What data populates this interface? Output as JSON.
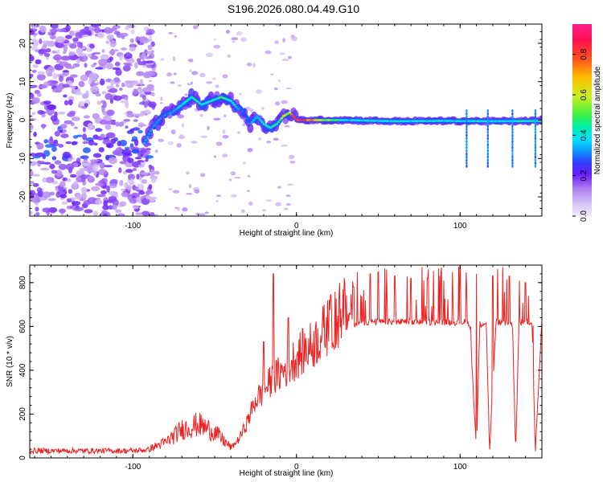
{
  "figure": {
    "title": "S196.2026.080.04.49.G10"
  },
  "chart_data": [
    {
      "type": "heatmap",
      "title": "S196.2026.080.04.49.G10",
      "xlabel": "Height of straight line (km)",
      "ylabel": "Frequency (Hz)",
      "xlim": [
        -163,
        150
      ],
      "ylim": [
        -25,
        25
      ],
      "x_ticks": [
        -100,
        0,
        100
      ],
      "y_ticks": [
        -20,
        -10,
        0,
        10,
        20
      ],
      "colorbar": {
        "label": "Normalized spectral amplitude",
        "range": [
          0,
          0.95
        ],
        "ticks": [
          "0.0",
          "0.2",
          "0.4",
          "0.6",
          "0.8"
        ],
        "colormap": [
          "#d8c8f8",
          "#b080f0",
          "#6a1cff",
          "#3040ff",
          "#1098ff",
          "#00e0ff",
          "#00f0a0",
          "#40f040",
          "#c8f020",
          "#ffc000",
          "#ff5020",
          "#ff1050",
          "#ff2090"
        ]
      },
      "ridge": {
        "x": [
          -93,
          -88,
          -82,
          -76,
          -70,
          -64,
          -58,
          -52,
          -46,
          -40,
          -36,
          -32,
          -28,
          -24,
          -20,
          -16,
          -12,
          -8,
          -4,
          0,
          10,
          30,
          60,
          90,
          120,
          150
        ],
        "y": [
          -6,
          -2,
          1,
          2,
          4,
          6,
          4,
          5,
          6,
          5,
          3,
          2,
          -1,
          1,
          -1,
          -2,
          -1,
          1,
          2,
          0,
          0,
          0,
          -0.3,
          -0.2,
          -0.3,
          -0.2
        ],
        "amplitude": [
          0.35,
          0.3,
          0.28,
          0.3,
          0.4,
          0.45,
          0.42,
          0.45,
          0.5,
          0.45,
          0.3,
          0.25,
          0.3,
          0.35,
          0.4,
          0.45,
          0.5,
          0.6,
          0.7,
          0.95,
          0.75,
          0.4,
          0.4,
          0.4,
          0.4,
          0.45
        ]
      },
      "noise_region_x": [
        -163,
        -93
      ]
    },
    {
      "type": "line",
      "xlabel": "Height of straight line (km)",
      "ylabel": "SNR (10 * v/v)",
      "xlim": [
        -163,
        150
      ],
      "ylim": [
        0,
        880
      ],
      "x_ticks": [
        -100,
        0,
        100
      ],
      "y_ticks": [
        0,
        200,
        400,
        600,
        800
      ],
      "series": [
        {
          "color": "#ee2222",
          "x": [
            -163,
            -140,
            -120,
            -100,
            -90,
            -80,
            -70,
            -60,
            -50,
            -40,
            -35,
            -30,
            -25,
            -20,
            -15,
            -10,
            -5,
            0,
            10,
            20,
            30,
            40,
            50,
            60,
            70,
            80,
            90,
            100,
            104,
            106,
            110,
            112,
            116,
            118,
            122,
            124,
            132,
            134,
            136,
            144,
            146,
            150
          ],
          "y": [
            30,
            30,
            30,
            30,
            35,
            60,
            110,
            130,
            100,
            40,
            80,
            150,
            240,
            280,
            320,
            350,
            380,
            420,
            470,
            550,
            600,
            620,
            620,
            620,
            620,
            620,
            620,
            620,
            620,
            610,
            30,
            610,
            620,
            30,
            620,
            620,
            610,
            30,
            620,
            620,
            30,
            630
          ],
          "spikes": {
            "x": [
              -20,
              -14,
              -5,
              20,
              35,
              45,
              50,
              55,
              60,
              70,
              80,
              90,
              100,
              110,
              120,
              130,
              140
            ],
            "y": [
              530,
              840,
              640,
              710,
              780,
              840,
              850,
              860,
              830,
              820,
              820,
              810,
              870,
              840,
              830,
              830,
              800
            ]
          }
        }
      ]
    }
  ]
}
